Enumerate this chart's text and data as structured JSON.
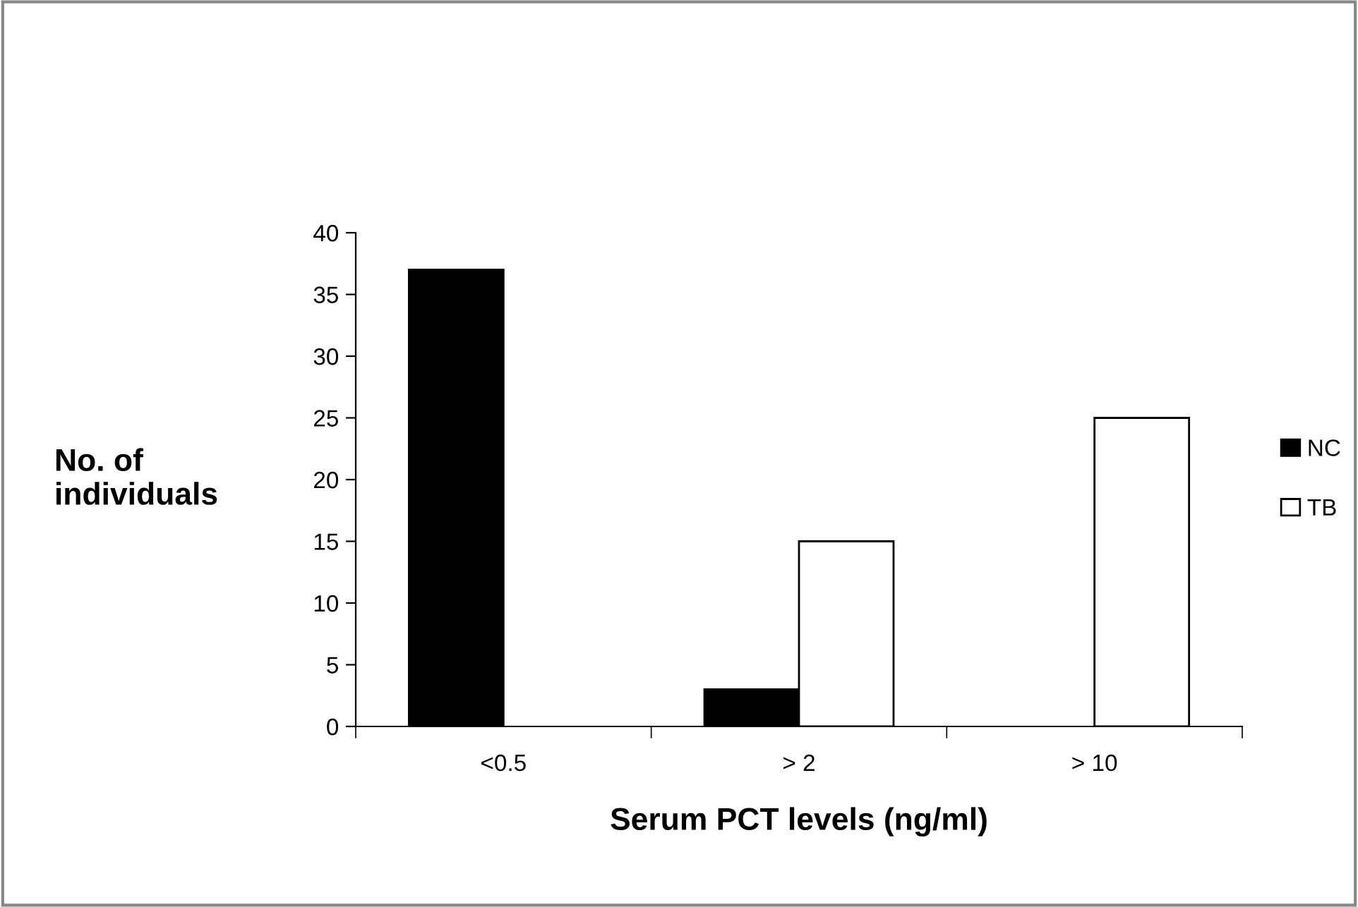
{
  "chart_data": {
    "type": "bar",
    "xlabel": "Serum PCT levels (ng/ml)",
    "ylabel": "No. of\nindividuals",
    "categories": [
      "<0.5",
      "> 2",
      "> 10"
    ],
    "series": [
      {
        "name": "NC",
        "color": "#000000",
        "values": [
          37,
          3,
          0
        ]
      },
      {
        "name": "TB",
        "color": "#ffffff",
        "values": [
          0,
          15,
          25
        ]
      }
    ],
    "ylim": [
      0,
      40
    ],
    "yticks": [
      0,
      5,
      10,
      15,
      20,
      25,
      30,
      35,
      40
    ],
    "grid": false,
    "legend": "right"
  }
}
